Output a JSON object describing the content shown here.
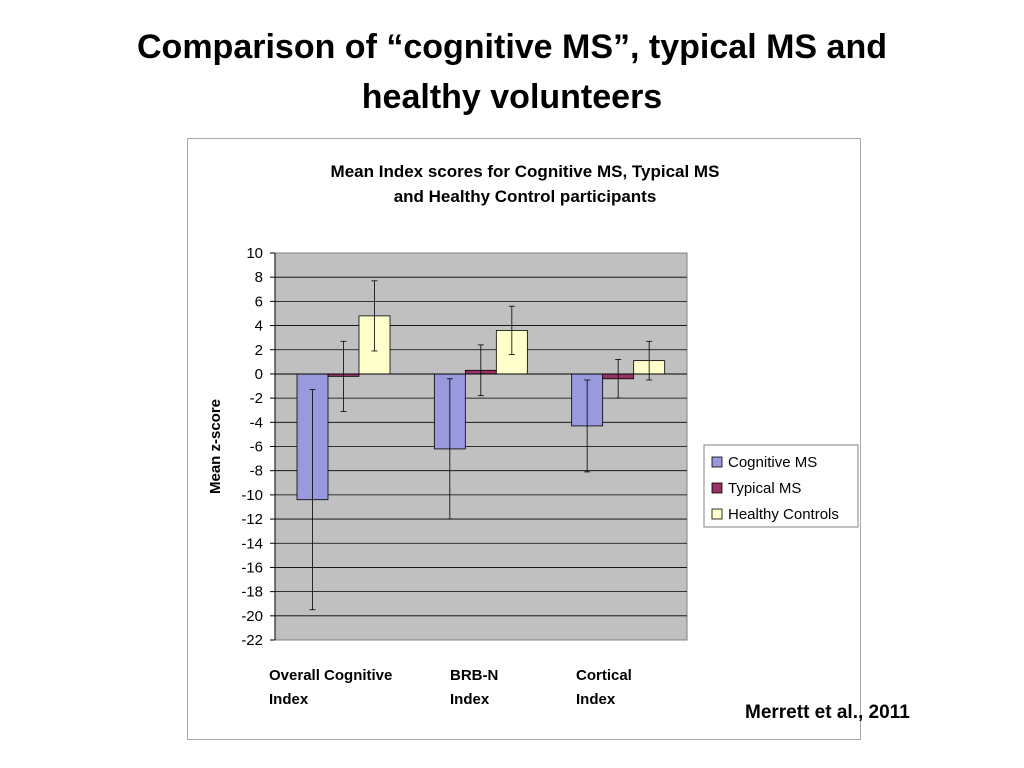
{
  "slide": {
    "title_line1": "Comparison of “cognitive MS”, typical MS and",
    "title_line2": "healthy volunteers",
    "citation": "Merrett et al., 2011"
  },
  "chart_data": {
    "type": "bar",
    "title_lines": [
      "Mean Index scores for Cognitive MS, Typical MS",
      "and Healthy Control participants"
    ],
    "ylabel": "Mean z-score",
    "xlabel": "",
    "ylim": [
      -22,
      10
    ],
    "yticks": [
      10,
      8,
      6,
      4,
      2,
      0,
      -2,
      -4,
      -6,
      -8,
      -10,
      -12,
      -14,
      -16,
      -18,
      -20,
      -22
    ],
    "grid": true,
    "legend_position": "right",
    "categories": [
      {
        "lines": [
          "Overall Cognitive",
          "Index"
        ]
      },
      {
        "lines": [
          "BRB-N",
          "Index"
        ]
      },
      {
        "lines": [
          "Cortical",
          "Index"
        ]
      }
    ],
    "series": [
      {
        "name": "Cognitive MS",
        "color": "#9999dd",
        "values": [
          -10.4,
          -6.2,
          -4.3
        ],
        "error": [
          9.1,
          5.8,
          3.8
        ]
      },
      {
        "name": "Typical MS",
        "color": "#993366",
        "values": [
          -0.2,
          0.3,
          -0.4
        ],
        "error": [
          2.9,
          2.1,
          1.6
        ]
      },
      {
        "name": "Healthy Controls",
        "color": "#ffffcc",
        "values": [
          4.8,
          3.6,
          1.1
        ],
        "error": [
          2.9,
          2.0,
          1.6
        ]
      }
    ],
    "colors": {
      "plot_background": "#c0c0c0",
      "gridline": "#000000",
      "bar_border": "#000000"
    }
  }
}
